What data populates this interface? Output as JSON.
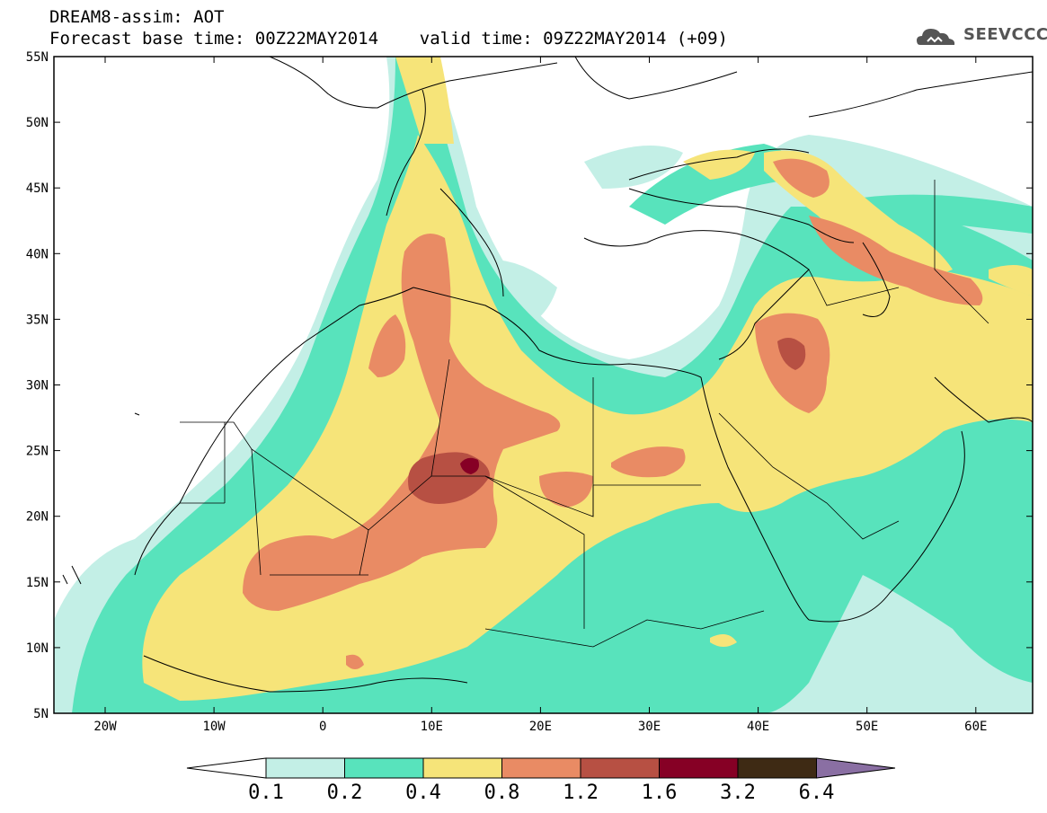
{
  "header": {
    "line1": "DREAM8-assim: AOT",
    "line2": "Forecast base time: 00Z22MAY2014    valid time: 09Z22MAY2014 (+09)",
    "logo_text": "SEEVCCC"
  },
  "axes": {
    "lat_labels": [
      "55N",
      "50N",
      "45N",
      "40N",
      "35N",
      "30N",
      "25N",
      "20N",
      "15N",
      "10N",
      "5N"
    ],
    "lon_labels": [
      "20W",
      "10W",
      "0",
      "10E",
      "20E",
      "30E",
      "40E",
      "50E",
      "60E"
    ]
  },
  "colorbar": {
    "labels": [
      "0.1",
      "0.2",
      "0.4",
      "0.8",
      "1.2",
      "1.6",
      "3.2",
      "6.4"
    ],
    "colors": [
      "#ffffff",
      "#c3efe6",
      "#58e3bc",
      "#f6e479",
      "#e98b64",
      "#b75043",
      "#860025",
      "#3e2a14",
      "#8a6fa3"
    ]
  },
  "palette": {
    "c01": "#c3efe6",
    "c02": "#58e3bc",
    "c04": "#f6e479",
    "c08": "#e98b64",
    "c12": "#b75043",
    "c16": "#860025"
  }
}
